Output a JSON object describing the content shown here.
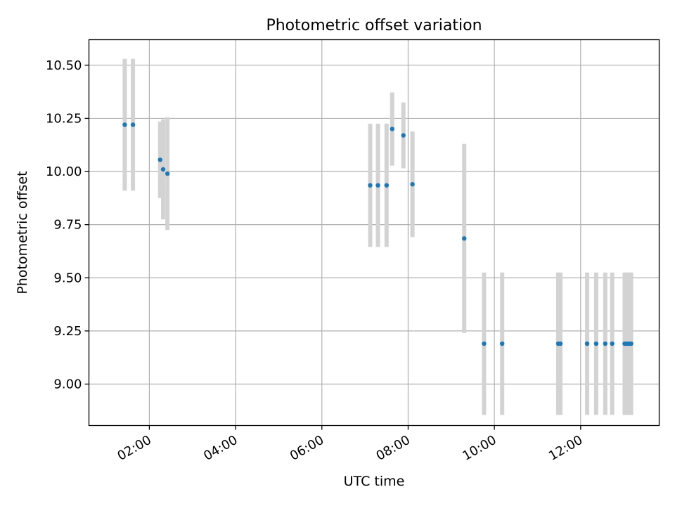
{
  "chart_data": {
    "type": "scatter",
    "title": "Photometric offset variation",
    "xlabel": "UTC time",
    "ylabel": "Photometric offset",
    "grid": true,
    "xlim_hours": [
      0.6,
      13.82
    ],
    "ylim": [
      8.805,
      10.62
    ],
    "x_ticks": [
      {
        "label": "02:00",
        "value": 2
      },
      {
        "label": "04:00",
        "value": 4
      },
      {
        "label": "06:00",
        "value": 6
      },
      {
        "label": "08:00",
        "value": 8
      },
      {
        "label": "10:00",
        "value": 10
      },
      {
        "label": "12:00",
        "value": 12
      }
    ],
    "y_ticks": [
      {
        "label": "9.00",
        "value": 9.0
      },
      {
        "label": "9.25",
        "value": 9.25
      },
      {
        "label": "9.50",
        "value": 9.5
      },
      {
        "label": "9.75",
        "value": 9.75
      },
      {
        "label": "10.00",
        "value": 10.0
      },
      {
        "label": "10.25",
        "value": 10.25
      },
      {
        "label": "10.50",
        "value": 10.5
      }
    ],
    "series": [
      {
        "name": "offset",
        "color": "#1f77b4",
        "errorbar_color": "#d3d3d3",
        "points": [
          {
            "x": 1.43,
            "y": 10.22,
            "err": 0.31
          },
          {
            "x": 1.62,
            "y": 10.22,
            "err": 0.31
          },
          {
            "x": 2.25,
            "y": 10.055,
            "err": 0.18
          },
          {
            "x": 2.32,
            "y": 10.01,
            "err": 0.235
          },
          {
            "x": 2.42,
            "y": 9.99,
            "err": 0.265
          },
          {
            "x": 7.12,
            "y": 9.935,
            "err": 0.29
          },
          {
            "x": 7.3,
            "y": 9.935,
            "err": 0.29
          },
          {
            "x": 7.5,
            "y": 9.935,
            "err": 0.29
          },
          {
            "x": 7.63,
            "y": 10.2,
            "err": 0.172
          },
          {
            "x": 7.89,
            "y": 10.17,
            "err": 0.155
          },
          {
            "x": 8.1,
            "y": 9.94,
            "err": 0.248
          },
          {
            "x": 9.3,
            "y": 9.685,
            "err": 0.445
          },
          {
            "x": 9.76,
            "y": 9.19,
            "err": 0.335
          },
          {
            "x": 10.18,
            "y": 9.19,
            "err": 0.335
          },
          {
            "x": 11.48,
            "y": 9.19,
            "err": 0.335
          },
          {
            "x": 11.53,
            "y": 9.19,
            "err": 0.335
          },
          {
            "x": 12.15,
            "y": 9.19,
            "err": 0.335
          },
          {
            "x": 12.36,
            "y": 9.19,
            "err": 0.335
          },
          {
            "x": 12.57,
            "y": 9.19,
            "err": 0.335
          },
          {
            "x": 12.73,
            "y": 9.19,
            "err": 0.335
          },
          {
            "x": 13.02,
            "y": 9.19,
            "err": 0.335
          },
          {
            "x": 13.07,
            "y": 9.19,
            "err": 0.335
          },
          {
            "x": 13.12,
            "y": 9.19,
            "err": 0.335
          },
          {
            "x": 13.17,
            "y": 9.19,
            "err": 0.335
          }
        ]
      }
    ]
  }
}
